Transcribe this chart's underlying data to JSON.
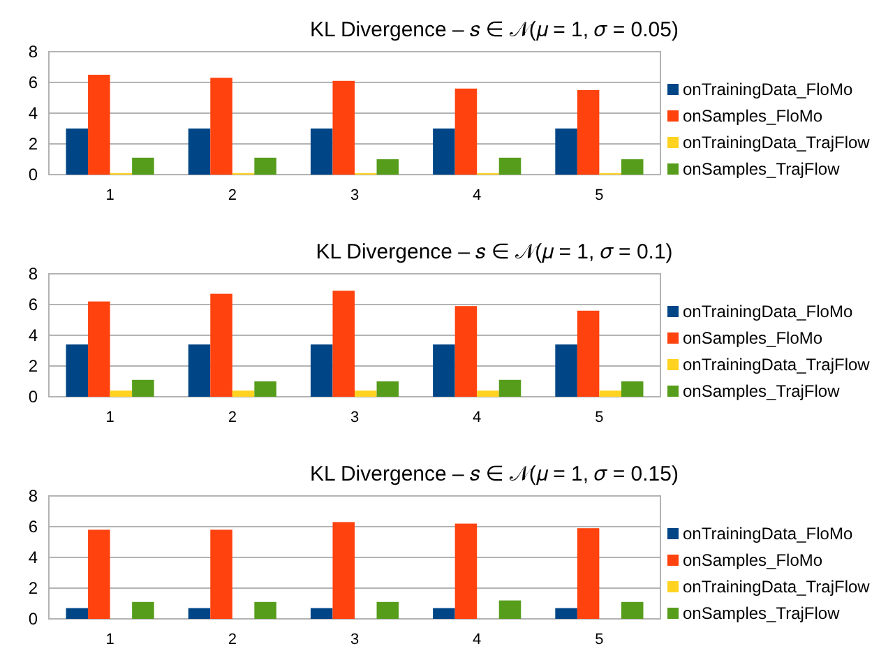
{
  "chart_data": [
    {
      "type": "bar",
      "title": "KL Divergence – 𝑠 ∈ 𝒩(𝜇 = 1, 𝜎 = 0.05)",
      "categories": [
        "1",
        "2",
        "3",
        "4",
        "5"
      ],
      "series": [
        {
          "name": "onTrainingData_FloMo",
          "color": "#004586",
          "values": [
            3.0,
            3.0,
            3.0,
            3.0,
            3.0
          ]
        },
        {
          "name": "onSamples_FloMo",
          "color": "#ff420e",
          "values": [
            6.5,
            6.3,
            6.1,
            5.6,
            5.5
          ]
        },
        {
          "name": "onTrainingData_TrajFlow",
          "color": "#ffd320",
          "values": [
            0.1,
            0.1,
            0.1,
            0.1,
            0.1
          ]
        },
        {
          "name": "onSamples_TrajFlow",
          "color": "#579d1c",
          "values": [
            1.1,
            1.1,
            1.0,
            1.1,
            1.0
          ]
        }
      ],
      "ylim": [
        0,
        8
      ],
      "yticks": [
        0,
        2,
        4,
        6,
        8
      ],
      "grid": "y",
      "legend": "right"
    },
    {
      "type": "bar",
      "title": "KL Divergence – 𝑠 ∈ 𝒩(𝜇 = 1, 𝜎 = 0.1)",
      "categories": [
        "1",
        "2",
        "3",
        "4",
        "5"
      ],
      "series": [
        {
          "name": "onTrainingData_FloMo",
          "color": "#004586",
          "values": [
            3.4,
            3.4,
            3.4,
            3.4,
            3.4
          ]
        },
        {
          "name": "onSamples_FloMo",
          "color": "#ff420e",
          "values": [
            6.2,
            6.7,
            6.9,
            5.9,
            5.6
          ]
        },
        {
          "name": "onTrainingData_TrajFlow",
          "color": "#ffd320",
          "values": [
            0.4,
            0.4,
            0.4,
            0.4,
            0.4
          ]
        },
        {
          "name": "onSamples_TrajFlow",
          "color": "#579d1c",
          "values": [
            1.1,
            1.0,
            1.0,
            1.1,
            1.0
          ]
        }
      ],
      "ylim": [
        0,
        8
      ],
      "yticks": [
        0,
        2,
        4,
        6,
        8
      ],
      "grid": "y",
      "legend": "right"
    },
    {
      "type": "bar",
      "title": "KL Divergence – 𝑠 ∈ 𝒩(𝜇 = 1, 𝜎 = 0.15)",
      "categories": [
        "1",
        "2",
        "3",
        "4",
        "5"
      ],
      "series": [
        {
          "name": "onTrainingData_FloMo",
          "color": "#004586",
          "values": [
            0.7,
            0.7,
            0.7,
            0.7,
            0.7
          ]
        },
        {
          "name": "onSamples_FloMo",
          "color": "#ff420e",
          "values": [
            5.8,
            5.8,
            6.3,
            6.2,
            5.9
          ]
        },
        {
          "name": "onTrainingData_TrajFlow",
          "color": "#ffd320",
          "values": [
            0,
            0,
            0,
            0,
            0
          ]
        },
        {
          "name": "onSamples_TrajFlow",
          "color": "#579d1c",
          "values": [
            1.1,
            1.1,
            1.1,
            1.2,
            1.1
          ]
        }
      ],
      "ylim": [
        0,
        8
      ],
      "yticks": [
        0,
        2,
        4,
        6,
        8
      ],
      "grid": "y",
      "legend": "right"
    }
  ]
}
